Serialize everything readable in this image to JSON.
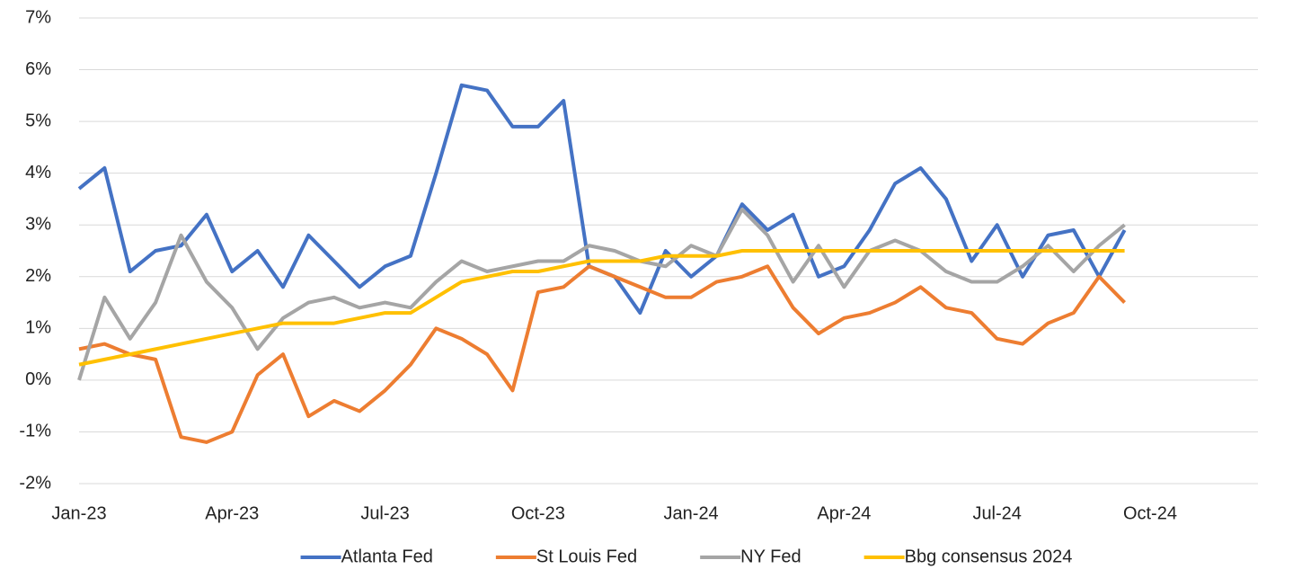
{
  "chart_data": {
    "type": "line",
    "categories": [
      "Jan-23",
      null,
      null,
      null,
      null,
      null,
      "Apr-23",
      null,
      null,
      null,
      null,
      null,
      "Jul-23",
      null,
      null,
      null,
      null,
      null,
      "Oct-23",
      null,
      null,
      null,
      null,
      null,
      "Jan-24",
      null,
      null,
      null,
      null,
      null,
      "Apr-24",
      null,
      null,
      null,
      null,
      null,
      "Jul-24",
      null,
      null,
      null,
      null,
      null,
      "Oct-24",
      null,
      null,
      null,
      null
    ],
    "series": [
      {
        "name": "Atlanta Fed",
        "color": "#4472c4",
        "values": [
          3.7,
          4.1,
          2.1,
          2.5,
          2.6,
          3.2,
          2.1,
          2.5,
          1.8,
          2.8,
          2.3,
          1.8,
          2.2,
          2.4,
          4.0,
          5.7,
          5.6,
          4.9,
          4.9,
          5.4,
          2.2,
          2.0,
          1.3,
          2.5,
          2.0,
          2.4,
          3.4,
          2.9,
          3.2,
          2.0,
          2.2,
          2.9,
          3.8,
          4.1,
          3.5,
          2.3,
          3.0,
          2.0,
          2.8,
          2.9,
          2.0,
          2.9,
          null,
          null,
          null,
          null,
          null
        ]
      },
      {
        "name": "St Louis Fed",
        "color": "#ed7d31",
        "values": [
          0.6,
          0.7,
          0.5,
          0.4,
          -1.1,
          -1.2,
          -1.0,
          0.1,
          0.5,
          -0.7,
          -0.4,
          -0.6,
          -0.2,
          0.3,
          1.0,
          0.8,
          0.5,
          -0.2,
          1.7,
          1.8,
          2.2,
          2.0,
          1.8,
          1.6,
          1.6,
          1.9,
          2.0,
          2.2,
          1.4,
          0.9,
          1.2,
          1.3,
          1.5,
          1.8,
          1.4,
          1.3,
          0.8,
          0.7,
          1.1,
          1.3,
          2.0,
          1.5,
          null,
          null,
          null,
          null,
          null
        ]
      },
      {
        "name": "NY Fed",
        "color": "#a5a5a5",
        "values": [
          0.0,
          1.6,
          0.8,
          1.5,
          2.8,
          1.9,
          1.4,
          0.6,
          1.2,
          1.5,
          1.6,
          1.4,
          1.5,
          1.4,
          1.9,
          2.3,
          2.1,
          2.2,
          2.3,
          2.3,
          2.6,
          2.5,
          2.3,
          2.2,
          2.6,
          2.4,
          3.3,
          2.8,
          1.9,
          2.6,
          1.8,
          2.5,
          2.7,
          2.5,
          2.1,
          1.9,
          1.9,
          2.2,
          2.6,
          2.1,
          2.6,
          3.0,
          null,
          null,
          null,
          null,
          null
        ]
      },
      {
        "name": "Bbg consensus 2024",
        "color": "#ffc000",
        "values": [
          0.3,
          0.4,
          0.5,
          0.6,
          0.7,
          0.8,
          0.9,
          1.0,
          1.1,
          1.1,
          1.1,
          1.2,
          1.3,
          1.3,
          1.6,
          1.9,
          2.0,
          2.1,
          2.1,
          2.2,
          2.3,
          2.3,
          2.3,
          2.4,
          2.4,
          2.4,
          2.5,
          2.5,
          2.5,
          2.5,
          2.5,
          2.5,
          2.5,
          2.5,
          2.5,
          2.5,
          2.5,
          2.5,
          2.5,
          2.5,
          2.5,
          2.5,
          null,
          null,
          null,
          null,
          null
        ]
      }
    ],
    "ylim": [
      -2,
      7
    ],
    "yticks": [
      {
        "value": -2,
        "label": "-2%"
      },
      {
        "value": -1,
        "label": "-1%"
      },
      {
        "value": 0,
        "label": "0%"
      },
      {
        "value": 1,
        "label": "1%"
      },
      {
        "value": 2,
        "label": "2%"
      },
      {
        "value": 3,
        "label": "3%"
      },
      {
        "value": 4,
        "label": "4%"
      },
      {
        "value": 5,
        "label": "5%"
      },
      {
        "value": 6,
        "label": "6%"
      },
      {
        "value": 7,
        "label": "7%"
      }
    ],
    "grid": true,
    "legend": "bottom"
  }
}
